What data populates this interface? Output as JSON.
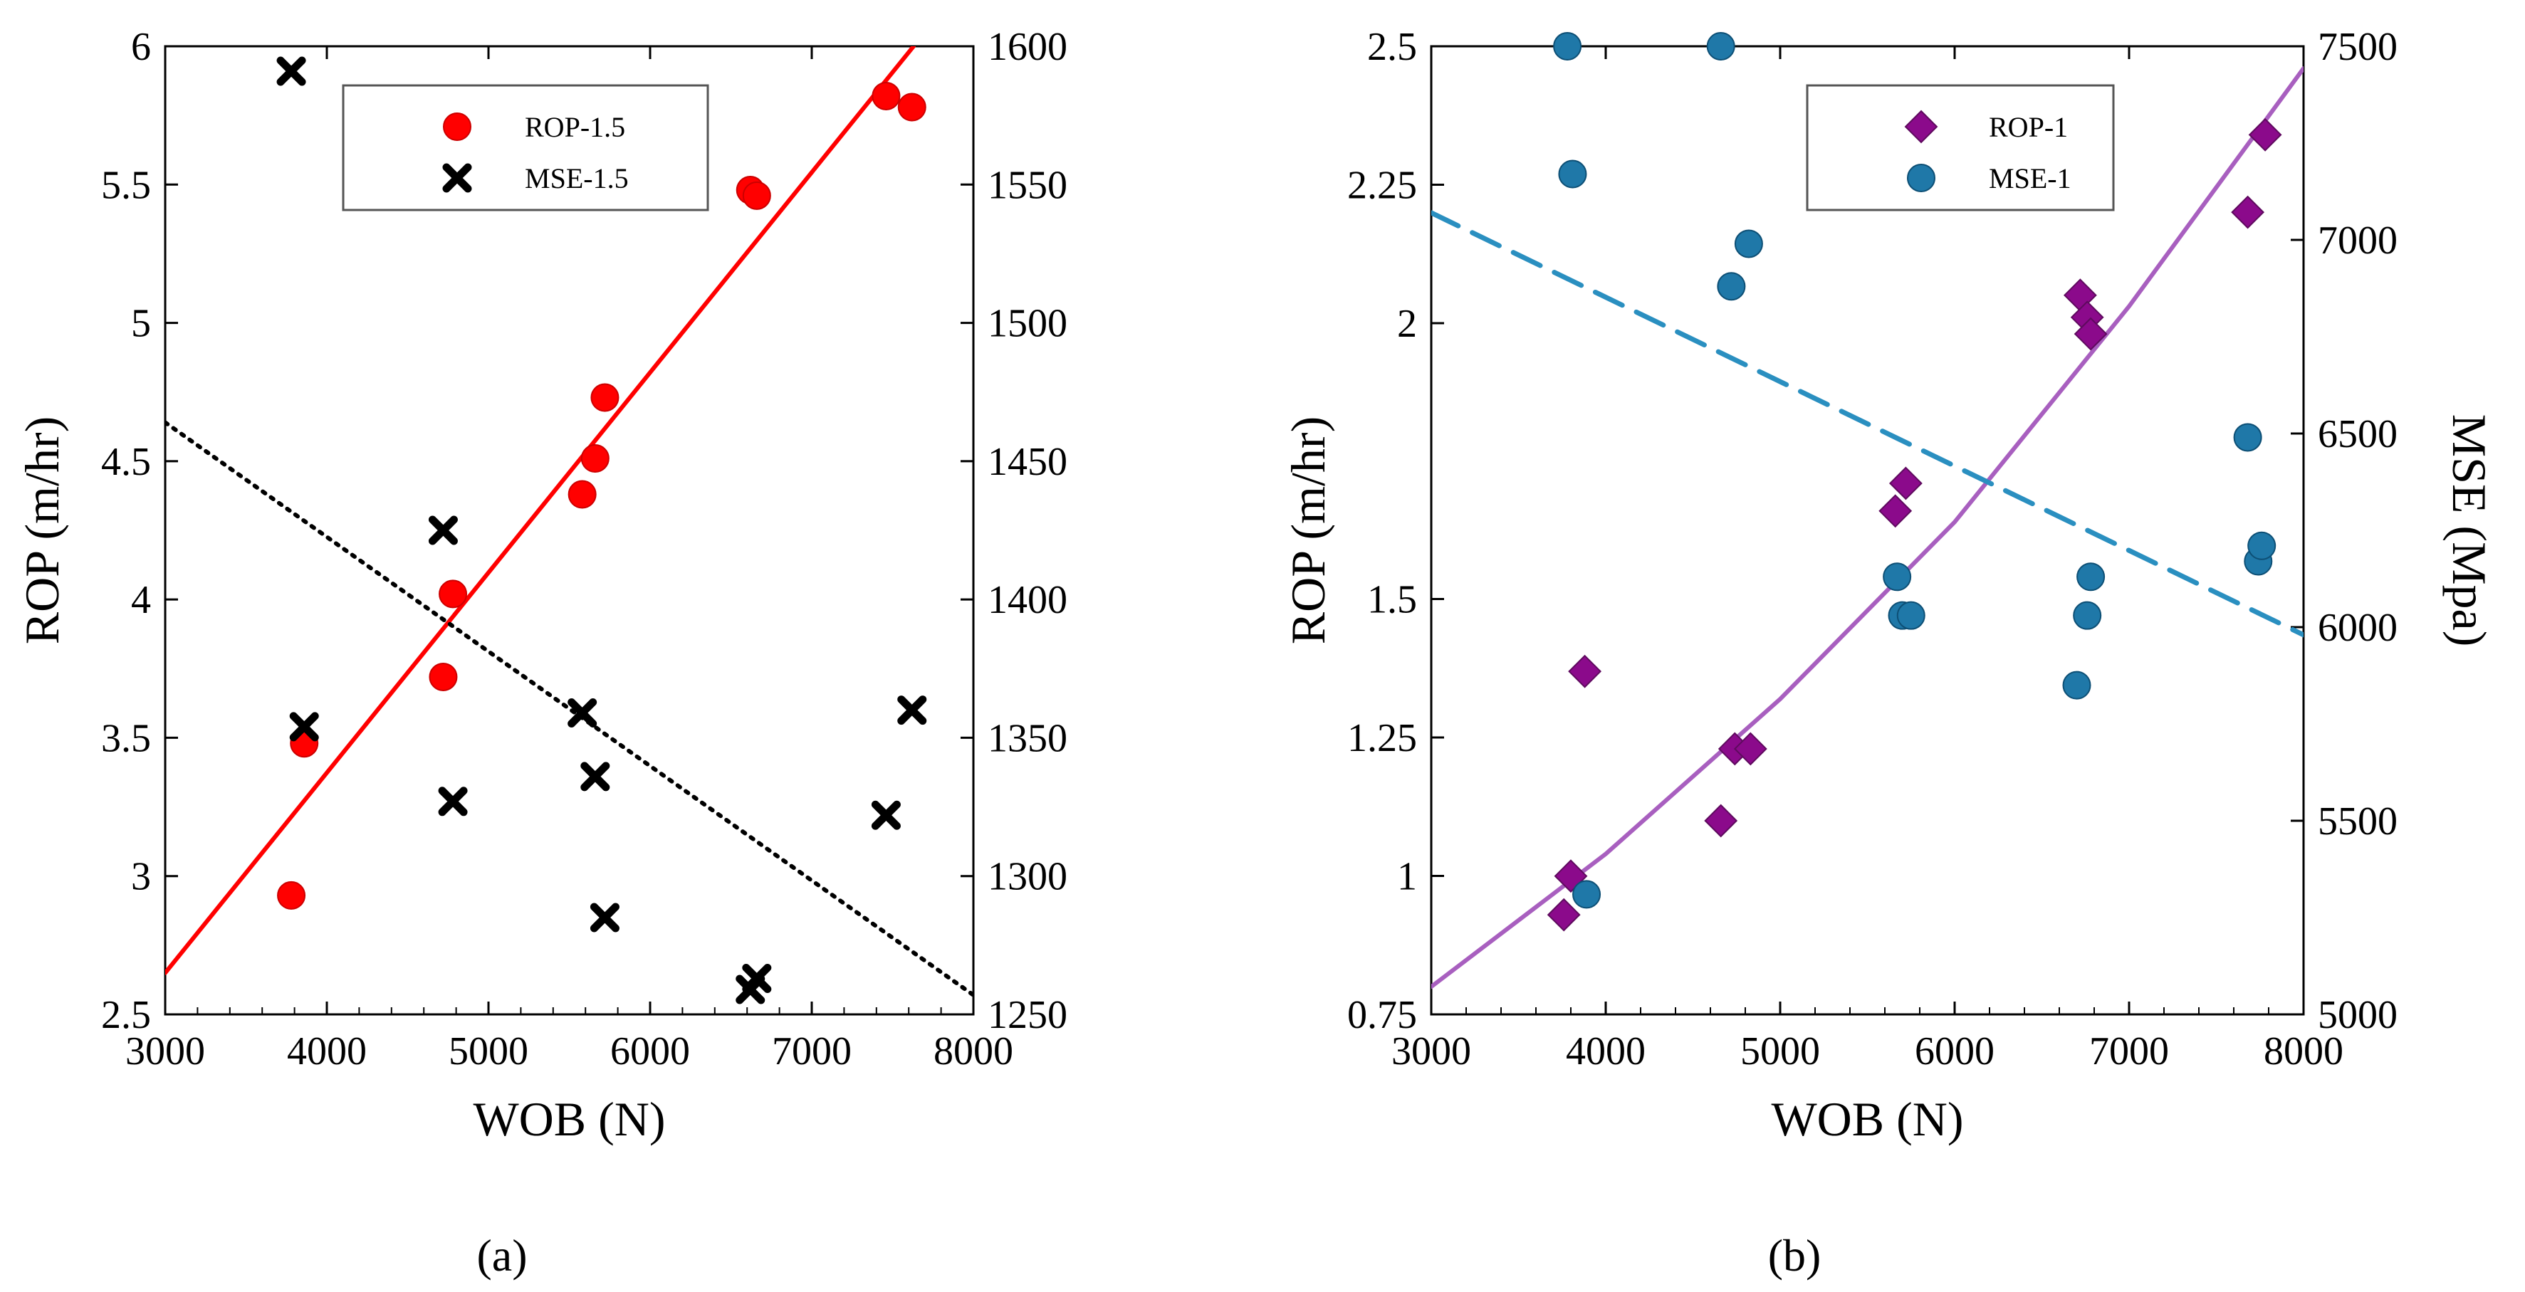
{
  "chart_data": [
    {
      "type": "scatter",
      "panel_label": "a",
      "xlabel": "WOB (N)",
      "ylabel": "ROP (m/hr)",
      "y2label": "",
      "xlim": [
        3000,
        8000
      ],
      "ylim": [
        2.5,
        6
      ],
      "y2lim": [
        1250,
        1600
      ],
      "x_ticks": [
        "3000",
        "4000",
        "5000",
        "6000",
        "7000",
        "8000"
      ],
      "y_ticks": [
        "2.5",
        "3",
        "3.5",
        "4",
        "4.5",
        "5",
        "5.5",
        "6"
      ],
      "y2_ticks": [
        "1250",
        "1300",
        "1350",
        "1400",
        "1450",
        "1500",
        "1550",
        "1600"
      ],
      "legend_position": "top-center",
      "series": [
        {
          "name": "ROP-1.5",
          "axis": "left",
          "marker": "circle",
          "color": "#ff0000",
          "points": [
            [
              3780,
              2.93
            ],
            [
              3860,
              3.48
            ],
            [
              4720,
              3.72
            ],
            [
              4780,
              4.02
            ],
            [
              5580,
              4.38
            ],
            [
              5660,
              4.51
            ],
            [
              5720,
              4.73
            ],
            [
              6620,
              5.48
            ],
            [
              6660,
              5.46
            ],
            [
              7460,
              5.82
            ],
            [
              7620,
              5.78
            ]
          ]
        },
        {
          "name": "MSE-1.5",
          "axis": "right",
          "marker": "x",
          "color": "#000000",
          "points": [
            [
              3780,
              1591
            ],
            [
              3860,
              1354
            ],
            [
              4720,
              1425
            ],
            [
              4780,
              1327
            ],
            [
              5580,
              1359
            ],
            [
              5660,
              1336
            ],
            [
              5720,
              1285
            ],
            [
              6620,
              1259
            ],
            [
              6660,
              1263
            ],
            [
              7460,
              1322
            ],
            [
              7620,
              1360
            ]
          ]
        }
      ],
      "trendlines": [
        {
          "series": "ROP-1.5",
          "axis": "left",
          "style": "solid",
          "color": "#ff0000",
          "points": [
            [
              3000,
              2.65
            ],
            [
              7630,
              6.0
            ]
          ]
        },
        {
          "series": "MSE-1.5",
          "axis": "right",
          "style": "dotted",
          "color": "#000000",
          "points": [
            [
              3000,
              1464
            ],
            [
              8000,
              1257
            ]
          ]
        }
      ]
    },
    {
      "type": "scatter",
      "panel_label": "b",
      "xlabel": "WOB (N)",
      "ylabel": "ROP (m/hr)",
      "y2label": "MSE (Mpa)",
      "xlim": [
        3000,
        8000
      ],
      "ylim": [
        0.75,
        2.5
      ],
      "y2lim": [
        5000,
        7500
      ],
      "x_ticks": [
        "3000",
        "4000",
        "5000",
        "6000",
        "7000",
        "8000"
      ],
      "y_ticks": [
        "0.75",
        "1",
        "1.25",
        "1.5",
        "2",
        "2.25",
        "2.5"
      ],
      "y_tick_values": [
        0.75,
        1,
        1.25,
        1.5,
        2,
        2.25,
        2.5
      ],
      "y_tick_positions_note": "left axis labels align with right-axis gridline levels (non-linear labelling as printed)",
      "y2_ticks": [
        "5000",
        "5500",
        "6000",
        "6500",
        "7000",
        "7500"
      ],
      "legend_position": "top-center",
      "series": [
        {
          "name": "ROP-1",
          "axis": "left",
          "marker": "diamond",
          "color": "#8b0a8b",
          "points": [
            [
              3760,
              0.93
            ],
            [
              3800,
              1.0
            ],
            [
              3880,
              1.37
            ],
            [
              4660,
              1.1
            ],
            [
              4740,
              1.23
            ],
            [
              4830,
              1.23
            ],
            [
              5660,
              1.66
            ],
            [
              5720,
              1.71
            ],
            [
              6720,
              2.05
            ],
            [
              6760,
              2.01
            ],
            [
              6780,
              1.98
            ],
            [
              7680,
              2.2
            ],
            [
              7780,
              2.34
            ]
          ]
        },
        {
          "name": "MSE-1",
          "axis": "right",
          "marker": "circle",
          "color": "#1f78a8",
          "points": [
            [
              3780,
              7500
            ],
            [
              3810,
              7170
            ],
            [
              3890,
              5310
            ],
            [
              4660,
              7580
            ],
            [
              4720,
              6880
            ],
            [
              4820,
              6990
            ],
            [
              5670,
              6130
            ],
            [
              5700,
              6030
            ],
            [
              5750,
              6030
            ],
            [
              6700,
              5850
            ],
            [
              6760,
              6030
            ],
            [
              6780,
              6130
            ],
            [
              7680,
              6490
            ],
            [
              7740,
              6170
            ],
            [
              7760,
              6210
            ]
          ]
        }
      ],
      "trendlines": [
        {
          "series": "ROP-1",
          "axis": "left",
          "style": "solid",
          "color": "#a85fbf",
          "curve": true,
          "points": [
            [
              3000,
              0.8
            ],
            [
              4000,
              1.04
            ],
            [
              5000,
              1.32
            ],
            [
              6000,
              1.64
            ],
            [
              7000,
              2.03
            ],
            [
              8000,
              2.46
            ]
          ]
        },
        {
          "series": "MSE-1",
          "axis": "right",
          "style": "dashed",
          "color": "#2a8fc0",
          "points": [
            [
              3000,
              7070
            ],
            [
              8000,
              5980
            ]
          ]
        }
      ]
    }
  ],
  "captions": {
    "a": "(a)",
    "b": "(b)"
  }
}
